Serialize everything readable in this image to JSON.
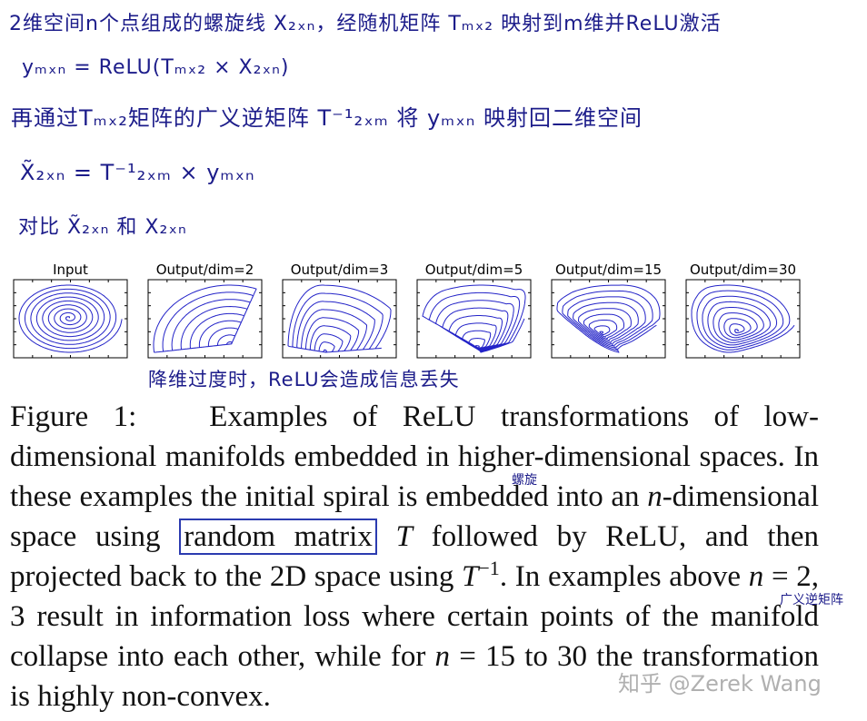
{
  "notes": [
    "2维空间n个点组成的螺旋线 X₂ₓₙ，经随机矩阵 Tₘₓ₂ 映射到m维并ReLU激活",
    "yₘₓₙ = ReLU(Tₘₓ₂ × X₂ₓₙ)",
    "再通过Tₘₓ₂矩阵的广义逆矩阵 T⁻¹₂ₓₘ 将 yₘₓₙ 映射回二维空间",
    "X̃₂ₓₙ = T⁻¹₂ₓₘ × yₘₓₙ",
    "对比 X̃₂ₓₙ 和 X₂ₓₙ"
  ],
  "panels": [
    "Input",
    "Output/dim=2",
    "Output/dim=3",
    "Output/dim=5",
    "Output/dim=15",
    "Output/dim=30"
  ],
  "panel_note": "降维过度时，ReLU会造成信息丢失",
  "caption": {
    "label": "Figure 1:",
    "parts": [
      "Examples of ReLU transformations of low-dimensional manifolds embedded in higher-dimensional spaces. In these examples the initial spiral is embedded into an ",
      "n",
      "-dimensional space using ",
      "random matrix",
      "T",
      " followed by ReLU, and then projected back to the 2D space using ",
      "T",
      "−1",
      ". In examples above ",
      "n",
      " = 2, 3 result in information loss where certain points of the manifold collapse into each other, while for ",
      "n",
      " = 15 to 30 the transformation is highly non-convex."
    ]
  },
  "annotations": {
    "spiral": "螺旋",
    "pinv": "广义逆矩阵"
  },
  "watermark": "知乎 @Zerek Wang"
}
